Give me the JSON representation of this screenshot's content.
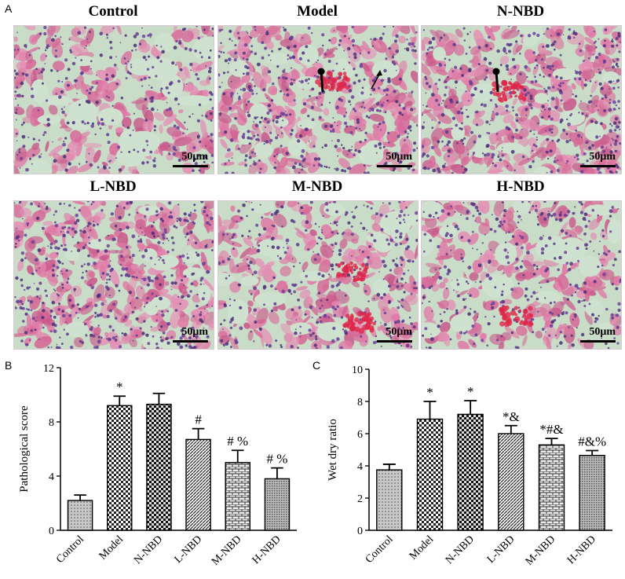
{
  "figure": {
    "panel_a_label": "A",
    "panel_b_label": "B",
    "panel_c_label": "C",
    "scale_bar_label": "50μm",
    "micrographs": [
      {
        "title": "Control",
        "seed": 11,
        "density": 0.35,
        "haemorrhage": 0,
        "arrow": "none"
      },
      {
        "title": "Model",
        "seed": 23,
        "density": 0.62,
        "haemorrhage": 1,
        "arrow": "pin-and-arrow"
      },
      {
        "title": "N-NBD",
        "seed": 37,
        "density": 0.68,
        "haemorrhage": 1,
        "arrow": "pin"
      },
      {
        "title": "L-NBD",
        "seed": 41,
        "density": 0.72,
        "haemorrhage": 0,
        "arrow": "none"
      },
      {
        "title": "M-NBD",
        "seed": 53,
        "density": 0.45,
        "haemorrhage": 2,
        "arrow": "none"
      },
      {
        "title": "H-NBD",
        "seed": 67,
        "density": 0.4,
        "haemorrhage": 1,
        "arrow": "none"
      }
    ]
  },
  "chart_data": [
    {
      "type": "bar",
      "panel": "B",
      "categories": [
        "Control",
        "Model",
        "N-NBD",
        "L-NBD",
        "M-NBD",
        "H-NBD"
      ],
      "values": [
        2.2,
        9.2,
        9.3,
        6.7,
        5.0,
        3.8
      ],
      "errors": [
        0.4,
        0.7,
        0.8,
        0.8,
        0.9,
        0.8
      ],
      "annotations": [
        "",
        "*",
        "",
        "#",
        "# %",
        "# %"
      ],
      "ylabel": "Pathological score",
      "ylim": [
        0,
        12
      ],
      "yticks": [
        0,
        4,
        8,
        12
      ],
      "grid": false
    },
    {
      "type": "bar",
      "panel": "C",
      "categories": [
        "Control",
        "Model",
        "N-NBD",
        "L-NBD",
        "M-NBD",
        "H-NBD"
      ],
      "values": [
        3.75,
        6.9,
        7.2,
        6.0,
        5.3,
        4.65
      ],
      "errors": [
        0.35,
        1.1,
        0.85,
        0.5,
        0.4,
        0.3
      ],
      "annotations": [
        "",
        "*",
        "*",
        "*&",
        "*#&",
        "#&%"
      ],
      "ylabel": "Wet dry ratio",
      "ylim": [
        0,
        10
      ],
      "yticks": [
        0,
        2,
        4,
        6,
        8,
        10
      ],
      "grid": false
    }
  ]
}
